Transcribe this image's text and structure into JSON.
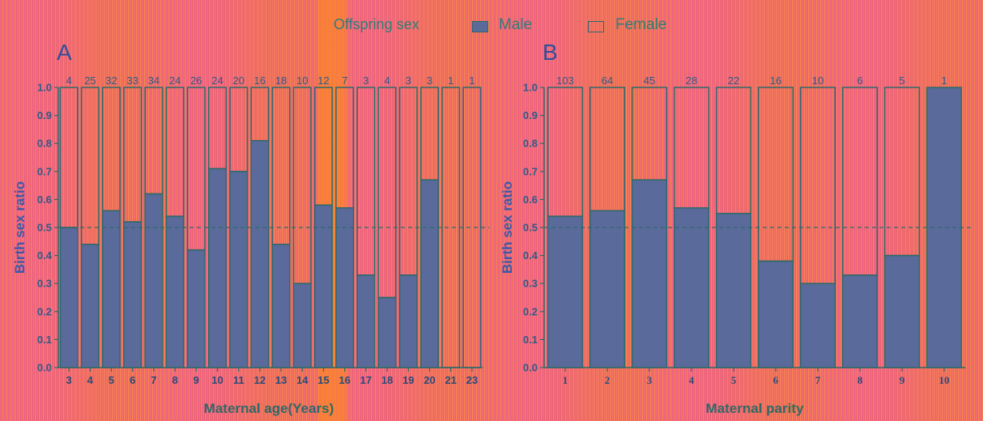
{
  "legend": {
    "title": "Offspring sex",
    "male_label": "Male",
    "female_label": "Female"
  },
  "colors": {
    "male_fill": "#5a6a9a",
    "female_fill": "none",
    "bar_stroke": "#2d6a6a",
    "reference_line": "#2d6a6a"
  },
  "chart_data": [
    {
      "type": "bar",
      "stacked": true,
      "panel_label": "A",
      "xlabel": "Maternal age(Years)",
      "ylabel": "Birth sex ratio",
      "ylim": [
        0,
        1.0
      ],
      "yticks": [
        "0.0",
        "0.1",
        "0.2",
        "0.3",
        "0.4",
        "0.5",
        "0.6",
        "0.7",
        "0.8",
        "0.9",
        "1.0"
      ],
      "reference_line": 0.5,
      "categories": [
        "3",
        "4",
        "5",
        "6",
        "7",
        "8",
        "9",
        "10",
        "11",
        "12",
        "13",
        "14",
        "15",
        "16",
        "17",
        "18",
        "19",
        "20",
        "21",
        "23"
      ],
      "series": [
        {
          "name": "Male",
          "values": [
            0.5,
            0.44,
            0.56,
            0.52,
            0.62,
            0.54,
            0.42,
            0.71,
            0.7,
            0.81,
            0.44,
            0.3,
            0.58,
            0.57,
            0.33,
            0.25,
            0.33,
            0.67,
            0,
            0
          ]
        },
        {
          "name": "Female",
          "values": [
            0.5,
            0.56,
            0.44,
            0.48,
            0.38,
            0.46,
            0.58,
            0.29,
            0.3,
            0.19,
            0.56,
            0.7,
            0.42,
            0.43,
            0.67,
            0.75,
            0.67,
            0.33,
            1,
            1
          ]
        }
      ],
      "counts": [
        "4",
        "25",
        "32",
        "33",
        "34",
        "24",
        "26",
        "24",
        "20",
        "16",
        "18",
        "10",
        "12",
        "7",
        "3",
        "4",
        "3",
        "3",
        "1",
        "1"
      ]
    },
    {
      "type": "bar",
      "stacked": true,
      "panel_label": "B",
      "xlabel": "Maternal parity",
      "ylabel": "Birth sex ratio",
      "ylim": [
        0,
        1.0
      ],
      "yticks": [
        "0.0",
        "0.1",
        "0.2",
        "0.3",
        "0.4",
        "0.5",
        "0.6",
        "0.7",
        "0.8",
        "0.9",
        "1.0"
      ],
      "reference_line": 0.5,
      "categories": [
        "1",
        "2",
        "3",
        "4",
        "5",
        "6",
        "7",
        "8",
        "9",
        "10"
      ],
      "series": [
        {
          "name": "Male",
          "values": [
            0.54,
            0.56,
            0.67,
            0.57,
            0.55,
            0.38,
            0.3,
            0.33,
            0.4,
            1.0
          ]
        },
        {
          "name": "Female",
          "values": [
            0.46,
            0.44,
            0.33,
            0.43,
            0.45,
            0.62,
            0.7,
            0.67,
            0.6,
            0
          ]
        }
      ],
      "counts": [
        "103",
        "64",
        "45",
        "28",
        "22",
        "16",
        "10",
        "6",
        "5",
        "1"
      ]
    }
  ]
}
